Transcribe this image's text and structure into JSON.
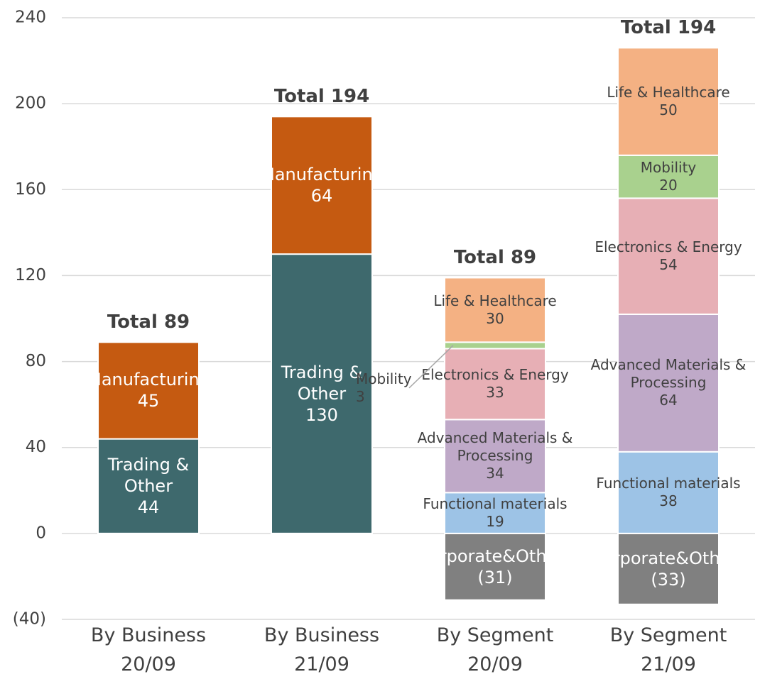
{
  "chart_data": {
    "type": "stacked_bar",
    "categories": [
      "By Business 20/09",
      "By Business 21/09",
      "By Segment 20/09",
      "By Segment 21/09"
    ],
    "series": [
      {
        "name": "Trading & Other",
        "color": "#3e696d",
        "values": [
          44,
          130,
          null,
          null
        ]
      },
      {
        "name": "Manufacturing",
        "color": "#c55a11",
        "values": [
          45,
          64,
          null,
          null
        ]
      },
      {
        "name": "Corporate&Others",
        "color": "#808080",
        "values": [
          null,
          null,
          -31,
          -33
        ],
        "value_labels": [
          null,
          null,
          "(31)",
          "(33)"
        ]
      },
      {
        "name": "Functional materials",
        "color": "#9dc3e6",
        "values": [
          null,
          null,
          19,
          38
        ]
      },
      {
        "name": "Advanced Materials & Processing",
        "color": "#bfa9c8",
        "values": [
          null,
          null,
          34,
          64
        ]
      },
      {
        "name": "Electronics & Energy",
        "color": "#e7afb5",
        "values": [
          null,
          null,
          33,
          54
        ]
      },
      {
        "name": "Mobility",
        "color": "#a9d18e",
        "values": [
          null,
          null,
          3,
          20
        ]
      },
      {
        "name": "Life & Healthcare",
        "color": "#f4b183",
        "values": [
          null,
          null,
          30,
          50
        ]
      }
    ],
    "totals": [
      89,
      194,
      89,
      194
    ],
    "totals_labels": [
      "Total 89",
      "Total 194",
      "Total 89",
      "Total 194"
    ],
    "ylim": [
      -40,
      240
    ],
    "yticks": [
      {
        "value": -40,
        "label": "(40)"
      },
      0,
      40,
      80,
      120,
      160,
      200,
      240
    ],
    "grid": true
  }
}
